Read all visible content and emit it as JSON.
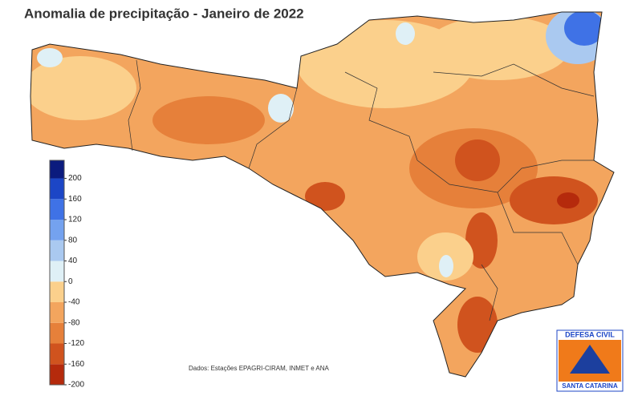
{
  "title": "Anomalia de precipitação - Janeiro de 2022",
  "colorbar": {
    "ylim": [
      -200,
      235
    ],
    "yticks": [
      -200,
      -160,
      -120,
      -80,
      -40,
      0,
      40,
      80,
      120,
      160,
      200
    ],
    "colors": [
      "#b52a0c",
      "#d0531e",
      "#e6803a",
      "#f3a55e",
      "#fbd08c",
      "#dff0f6",
      "#aac9f0",
      "#74a2ef",
      "#3f72e6",
      "#1c46c6",
      "#0b1b7e"
    ]
  },
  "source": "Dados: Estações EPAGRI-CIRAM, INMET e ANA",
  "logo": {
    "top": "DEFESA CIVIL",
    "bottom": "SANTA CATARINA"
  }
}
